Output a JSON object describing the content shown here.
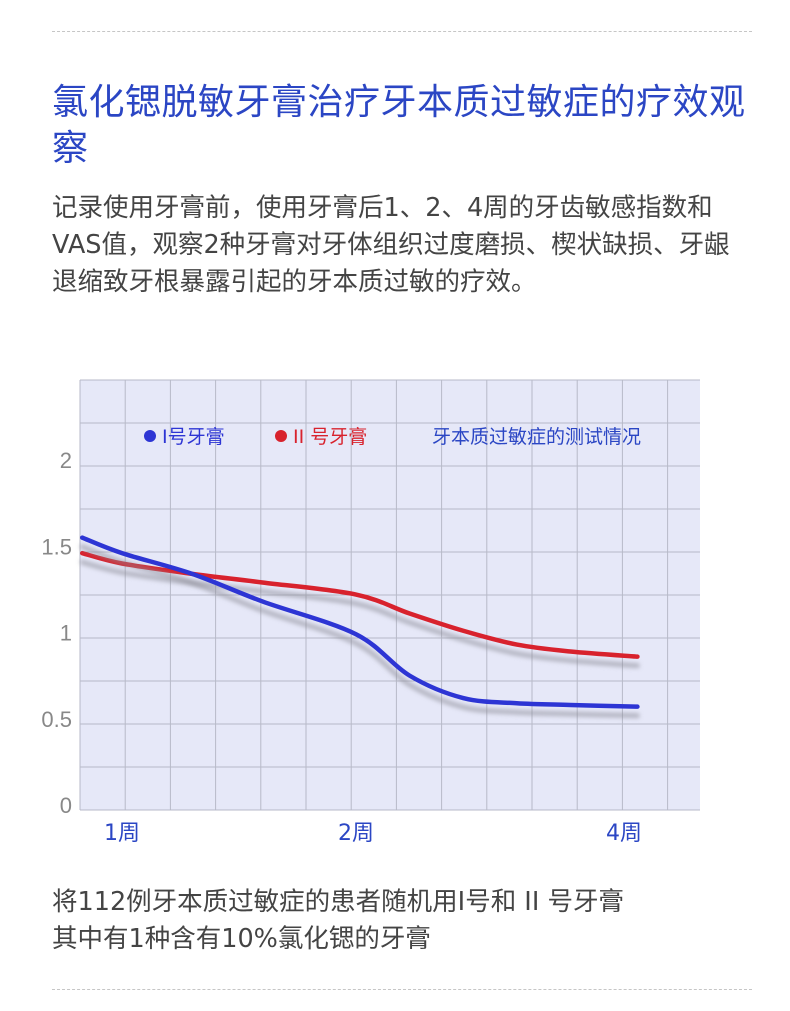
{
  "title": "氯化锶脱敏牙膏治疗牙本质过敏症的疗效观察",
  "intro": "记录使用牙膏前，使用牙膏后1、2、4周的牙齿敏感指数和VAS值，观察2种牙膏对牙体组织过度磨损、楔状缺损、牙龈退缩致牙根暴露引起的牙本质过敏的疗效。",
  "note_lines": [
    "将112例牙本质过敏症的患者随机用I号和 II 号牙膏",
    "其中有1种含有10%氯化锶的牙膏"
  ],
  "colors": {
    "title": "#2b46c4",
    "series_blue": "#2d35d4",
    "series_red": "#d8222d",
    "grid_bg": "#e6e8f8",
    "grid_line": "#b7b9c8"
  },
  "chart_data": {
    "type": "line",
    "title": "牙本质过敏症的测试情况",
    "xlabel": "",
    "ylabel": "",
    "ylim": [
      0,
      2.4
    ],
    "yticks": [
      "0",
      "0.5",
      "1",
      "1.5",
      "2"
    ],
    "ytick_values": [
      0,
      0.5,
      1,
      1.5,
      2
    ],
    "xticks": [
      "1周",
      "2周",
      "4周"
    ],
    "xtick_values": [
      1,
      2,
      4
    ],
    "xlim": [
      0.8,
      4.6
    ],
    "grid": true,
    "legend_position": "top",
    "series": [
      {
        "name": "I号牙膏",
        "color": "#2d35d4",
        "x": [
          0.83,
          1.0,
          1.3,
          1.6,
          2.0,
          2.4,
          2.8,
          3.2,
          3.6,
          4.1
        ],
        "y": [
          1.55,
          1.46,
          1.34,
          1.18,
          0.99,
          0.75,
          0.62,
          0.59,
          0.58,
          0.57
        ]
      },
      {
        "name": "II 号牙膏",
        "color": "#d8222d",
        "x": [
          0.83,
          1.0,
          1.3,
          1.6,
          2.0,
          2.4,
          2.8,
          3.2,
          3.6,
          4.1
        ],
        "y": [
          1.46,
          1.4,
          1.34,
          1.29,
          1.22,
          1.11,
          1.01,
          0.93,
          0.89,
          0.86
        ]
      }
    ]
  }
}
